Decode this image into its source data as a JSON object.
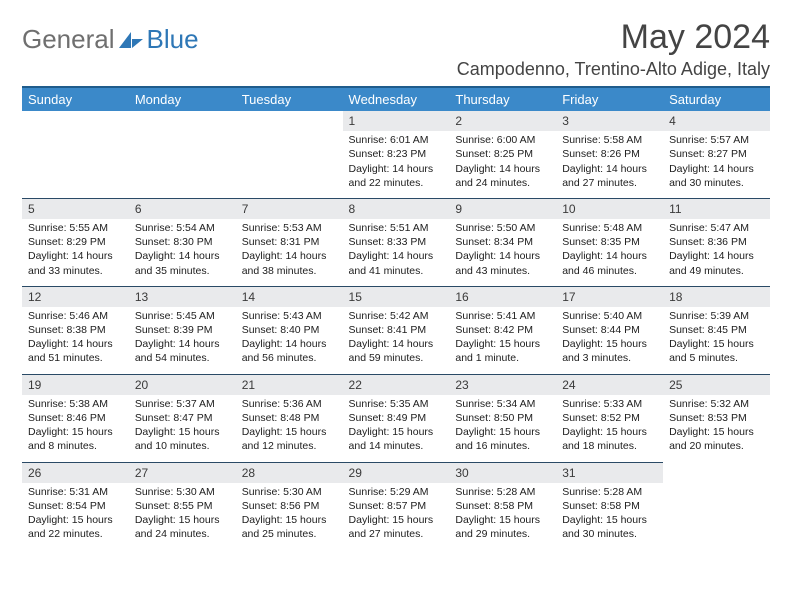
{
  "brand": {
    "part1": "General",
    "part2": "Blue"
  },
  "title": "May 2024",
  "location": "Campodenno, Trentino-Alto Adige, Italy",
  "colors": {
    "header_bg": "#3b89c9",
    "header_text": "#ffffff",
    "rule": "#1f5c8c",
    "daynum_bg": "#e9eaec",
    "logo_gray": "#6f6f6f",
    "logo_blue": "#2e77b6",
    "page_bg": "#ffffff"
  },
  "layout": {
    "columns": 7,
    "rows": 5,
    "month_start_col": 3
  },
  "weekdays": [
    "Sunday",
    "Monday",
    "Tuesday",
    "Wednesday",
    "Thursday",
    "Friday",
    "Saturday"
  ],
  "days": [
    {
      "n": 1,
      "sunrise": "6:01 AM",
      "sunset": "8:23 PM",
      "daylight": "14 hours and 22 minutes."
    },
    {
      "n": 2,
      "sunrise": "6:00 AM",
      "sunset": "8:25 PM",
      "daylight": "14 hours and 24 minutes."
    },
    {
      "n": 3,
      "sunrise": "5:58 AM",
      "sunset": "8:26 PM",
      "daylight": "14 hours and 27 minutes."
    },
    {
      "n": 4,
      "sunrise": "5:57 AM",
      "sunset": "8:27 PM",
      "daylight": "14 hours and 30 minutes."
    },
    {
      "n": 5,
      "sunrise": "5:55 AM",
      "sunset": "8:29 PM",
      "daylight": "14 hours and 33 minutes."
    },
    {
      "n": 6,
      "sunrise": "5:54 AM",
      "sunset": "8:30 PM",
      "daylight": "14 hours and 35 minutes."
    },
    {
      "n": 7,
      "sunrise": "5:53 AM",
      "sunset": "8:31 PM",
      "daylight": "14 hours and 38 minutes."
    },
    {
      "n": 8,
      "sunrise": "5:51 AM",
      "sunset": "8:33 PM",
      "daylight": "14 hours and 41 minutes."
    },
    {
      "n": 9,
      "sunrise": "5:50 AM",
      "sunset": "8:34 PM",
      "daylight": "14 hours and 43 minutes."
    },
    {
      "n": 10,
      "sunrise": "5:48 AM",
      "sunset": "8:35 PM",
      "daylight": "14 hours and 46 minutes."
    },
    {
      "n": 11,
      "sunrise": "5:47 AM",
      "sunset": "8:36 PM",
      "daylight": "14 hours and 49 minutes."
    },
    {
      "n": 12,
      "sunrise": "5:46 AM",
      "sunset": "8:38 PM",
      "daylight": "14 hours and 51 minutes."
    },
    {
      "n": 13,
      "sunrise": "5:45 AM",
      "sunset": "8:39 PM",
      "daylight": "14 hours and 54 minutes."
    },
    {
      "n": 14,
      "sunrise": "5:43 AM",
      "sunset": "8:40 PM",
      "daylight": "14 hours and 56 minutes."
    },
    {
      "n": 15,
      "sunrise": "5:42 AM",
      "sunset": "8:41 PM",
      "daylight": "14 hours and 59 minutes."
    },
    {
      "n": 16,
      "sunrise": "5:41 AM",
      "sunset": "8:42 PM",
      "daylight": "15 hours and 1 minute."
    },
    {
      "n": 17,
      "sunrise": "5:40 AM",
      "sunset": "8:44 PM",
      "daylight": "15 hours and 3 minutes."
    },
    {
      "n": 18,
      "sunrise": "5:39 AM",
      "sunset": "8:45 PM",
      "daylight": "15 hours and 5 minutes."
    },
    {
      "n": 19,
      "sunrise": "5:38 AM",
      "sunset": "8:46 PM",
      "daylight": "15 hours and 8 minutes."
    },
    {
      "n": 20,
      "sunrise": "5:37 AM",
      "sunset": "8:47 PM",
      "daylight": "15 hours and 10 minutes."
    },
    {
      "n": 21,
      "sunrise": "5:36 AM",
      "sunset": "8:48 PM",
      "daylight": "15 hours and 12 minutes."
    },
    {
      "n": 22,
      "sunrise": "5:35 AM",
      "sunset": "8:49 PM",
      "daylight": "15 hours and 14 minutes."
    },
    {
      "n": 23,
      "sunrise": "5:34 AM",
      "sunset": "8:50 PM",
      "daylight": "15 hours and 16 minutes."
    },
    {
      "n": 24,
      "sunrise": "5:33 AM",
      "sunset": "8:52 PM",
      "daylight": "15 hours and 18 minutes."
    },
    {
      "n": 25,
      "sunrise": "5:32 AM",
      "sunset": "8:53 PM",
      "daylight": "15 hours and 20 minutes."
    },
    {
      "n": 26,
      "sunrise": "5:31 AM",
      "sunset": "8:54 PM",
      "daylight": "15 hours and 22 minutes."
    },
    {
      "n": 27,
      "sunrise": "5:30 AM",
      "sunset": "8:55 PM",
      "daylight": "15 hours and 24 minutes."
    },
    {
      "n": 28,
      "sunrise": "5:30 AM",
      "sunset": "8:56 PM",
      "daylight": "15 hours and 25 minutes."
    },
    {
      "n": 29,
      "sunrise": "5:29 AM",
      "sunset": "8:57 PM",
      "daylight": "15 hours and 27 minutes."
    },
    {
      "n": 30,
      "sunrise": "5:28 AM",
      "sunset": "8:58 PM",
      "daylight": "15 hours and 29 minutes."
    },
    {
      "n": 31,
      "sunrise": "5:28 AM",
      "sunset": "8:58 PM",
      "daylight": "15 hours and 30 minutes."
    }
  ],
  "labels": {
    "sunrise": "Sunrise:",
    "sunset": "Sunset:",
    "daylight": "Daylight:"
  }
}
